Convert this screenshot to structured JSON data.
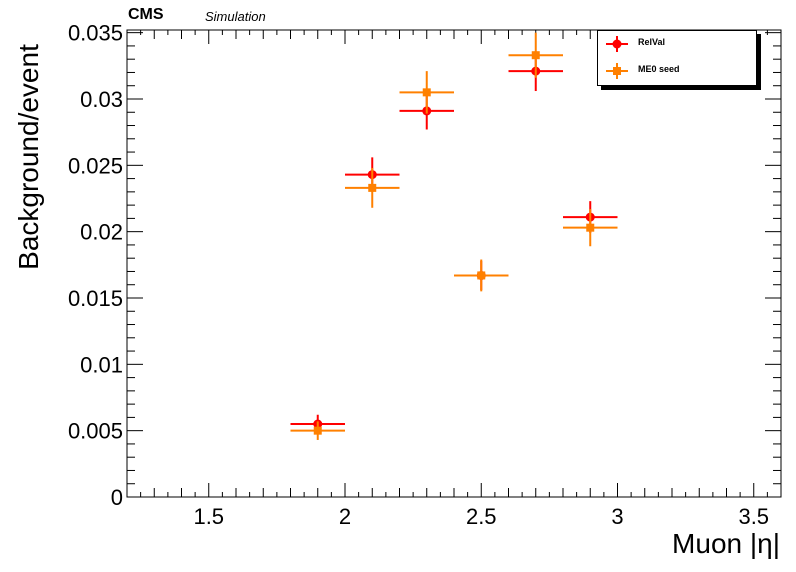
{
  "header": {
    "experiment": "CMS",
    "subtitle": "Simulation"
  },
  "chart_data": {
    "type": "scatter",
    "xlabel": "Muon |η|",
    "ylabel": "Background/event",
    "xlim": [
      1.2,
      3.6
    ],
    "ylim": [
      0,
      0.0352
    ],
    "xticks": [
      1.5,
      2,
      2.5,
      3,
      3.5
    ],
    "xtick_labels": [
      "1.5",
      "2",
      "2.5",
      "3",
      "3.5"
    ],
    "yticks": [
      0,
      0.005,
      0.01,
      0.015,
      0.02,
      0.025,
      0.03,
      0.035
    ],
    "ytick_labels": [
      "0",
      "0.005",
      "0.01",
      "0.015",
      "0.02",
      "0.025",
      "0.03",
      "0.035"
    ],
    "grid": false,
    "legend_position": "top-right",
    "series": [
      {
        "name": "RelVal",
        "color": "#ff0000",
        "marker": "circle",
        "points": [
          {
            "x": 1.9,
            "xerr": 0.1,
            "y": 0.0055,
            "yerr": 0.0007
          },
          {
            "x": 2.1,
            "xerr": 0.1,
            "y": 0.0243,
            "yerr": 0.0013
          },
          {
            "x": 2.3,
            "xerr": 0.1,
            "y": 0.0291,
            "yerr": 0.0014
          },
          {
            "x": 2.5,
            "xerr": 0.1,
            "y": 0.0167,
            "yerr": 0.0011
          },
          {
            "x": 2.7,
            "xerr": 0.1,
            "y": 0.0321,
            "yerr": 0.0015
          },
          {
            "x": 2.9,
            "xerr": 0.1,
            "y": 0.0211,
            "yerr": 0.0012
          }
        ]
      },
      {
        "name": "ME0 seed",
        "color": "#ff8000",
        "marker": "square",
        "points": [
          {
            "x": 1.9,
            "xerr": 0.1,
            "y": 0.005,
            "yerr": 0.0007
          },
          {
            "x": 2.1,
            "xerr": 0.1,
            "y": 0.0233,
            "yerr": 0.0015
          },
          {
            "x": 2.3,
            "xerr": 0.1,
            "y": 0.0305,
            "yerr": 0.0016
          },
          {
            "x": 2.5,
            "xerr": 0.1,
            "y": 0.0167,
            "yerr": 0.0012
          },
          {
            "x": 2.7,
            "xerr": 0.1,
            "y": 0.0333,
            "yerr": 0.0017
          },
          {
            "x": 2.9,
            "xerr": 0.1,
            "y": 0.0203,
            "yerr": 0.0014
          }
        ]
      }
    ]
  }
}
